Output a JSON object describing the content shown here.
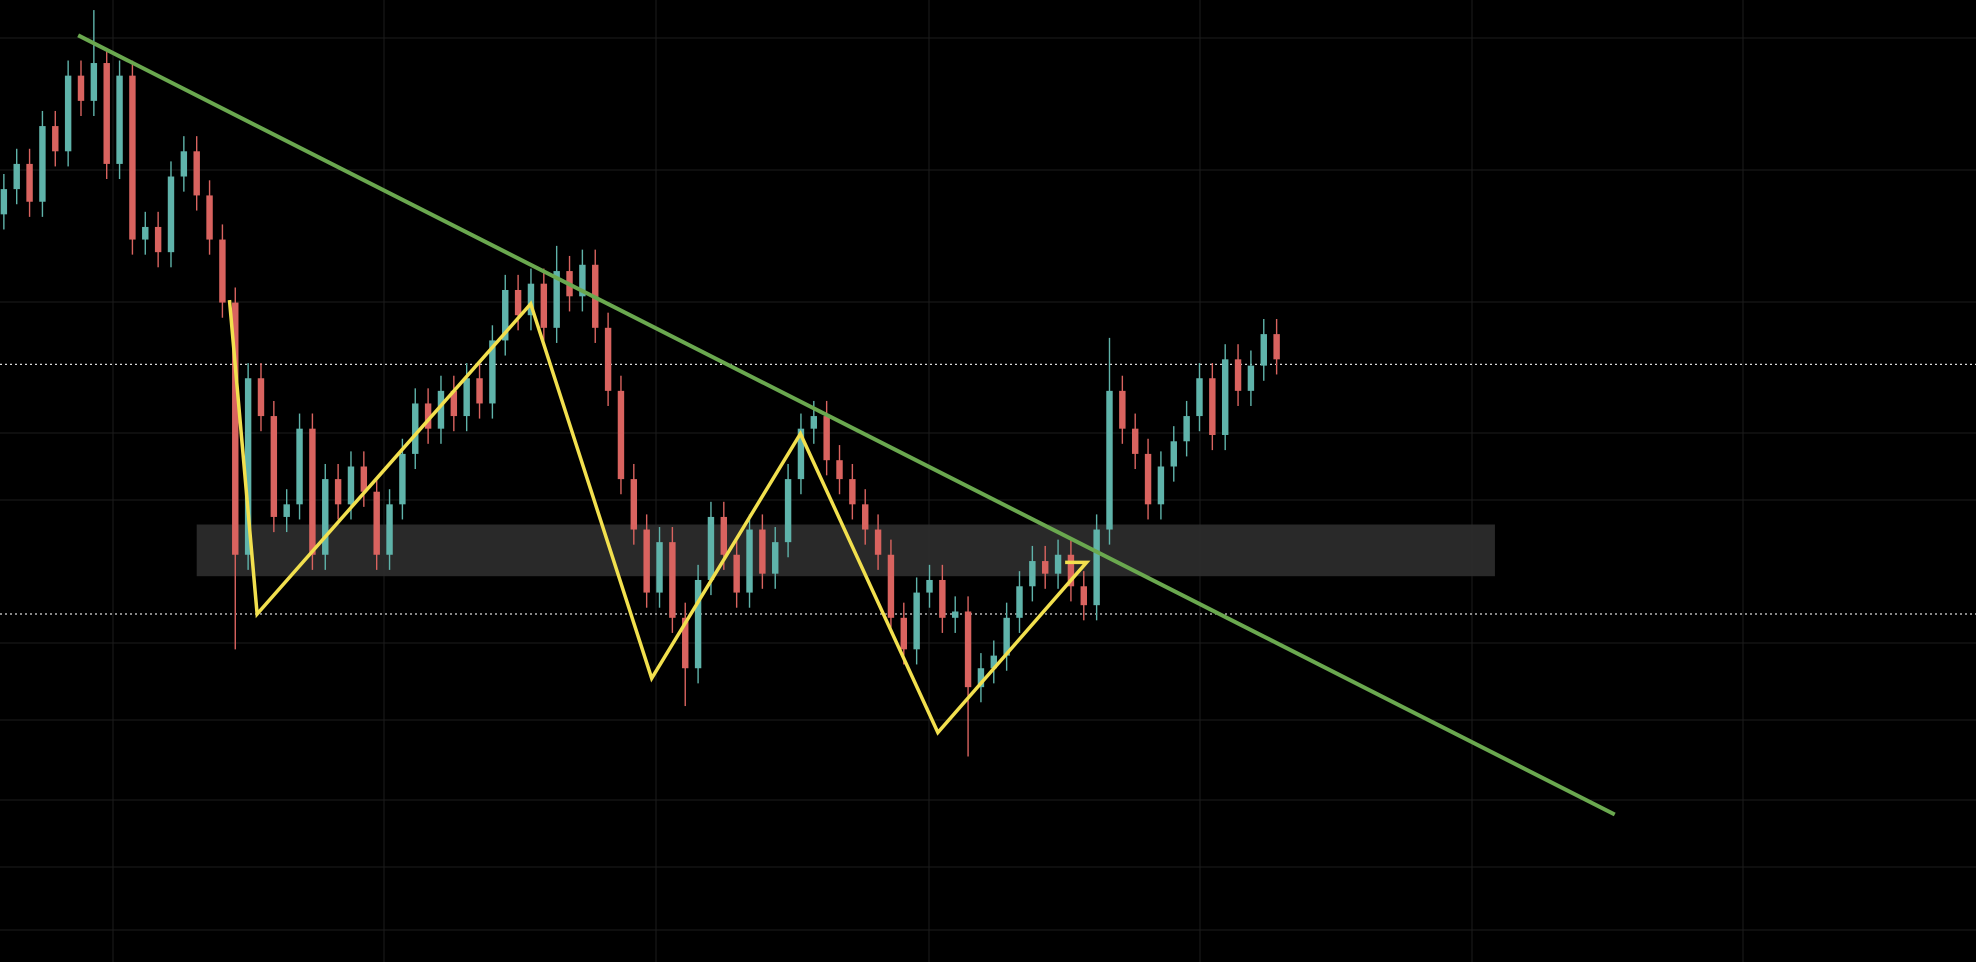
{
  "chart_data": {
    "type": "candlestick",
    "xlim": [
      -0.3,
      153.4
    ],
    "ylim": [
      0,
      763
    ],
    "up_color": "#5fb3aa",
    "down_color": "#d9635f",
    "open": [
      593,
      613,
      633,
      603,
      663,
      643,
      703,
      683,
      713,
      633,
      703,
      573,
      583,
      563,
      623,
      643,
      608,
      573,
      523,
      323,
      463,
      433,
      353,
      363,
      423,
      323,
      383,
      363,
      393,
      373,
      323,
      363,
      403,
      443,
      423,
      453,
      433,
      463,
      443,
      493,
      533,
      513,
      538,
      503,
      548,
      528,
      553,
      503,
      453,
      383,
      343,
      293,
      333,
      273,
      233,
      303,
      353,
      323,
      293,
      343,
      308,
      333,
      383,
      423,
      433,
      398,
      383,
      363,
      343,
      323,
      273,
      248,
      293,
      303,
      273,
      278,
      218,
      233,
      243,
      273,
      298,
      318,
      308,
      323,
      298,
      283,
      343,
      453,
      423,
      403,
      363,
      393,
      413,
      433,
      463,
      418,
      478,
      453,
      473,
      498
    ],
    "high": [
      625,
      645,
      645,
      675,
      675,
      715,
      715,
      755,
      725,
      715,
      715,
      595,
      595,
      635,
      655,
      655,
      620,
      585,
      535,
      475,
      475,
      445,
      375,
      435,
      435,
      395,
      395,
      405,
      405,
      385,
      375,
      415,
      455,
      455,
      465,
      465,
      475,
      475,
      505,
      545,
      545,
      550,
      550,
      568,
      560,
      565,
      565,
      515,
      465,
      395,
      355,
      345,
      345,
      285,
      315,
      365,
      365,
      335,
      355,
      355,
      345,
      395,
      435,
      445,
      445,
      410,
      395,
      375,
      355,
      335,
      285,
      305,
      315,
      315,
      290,
      290,
      245,
      255,
      285,
      310,
      330,
      330,
      335,
      335,
      310,
      355,
      495,
      465,
      435,
      415,
      405,
      425,
      445,
      475,
      475,
      490,
      490,
      485,
      510,
      510
    ],
    "low": [
      581,
      601,
      591,
      591,
      631,
      631,
      671,
      671,
      621,
      621,
      561,
      561,
      551,
      551,
      611,
      596,
      561,
      511,
      248,
      311,
      421,
      341,
      341,
      351,
      311,
      311,
      351,
      351,
      361,
      311,
      311,
      351,
      391,
      411,
      411,
      421,
      421,
      431,
      431,
      481,
      501,
      501,
      491,
      491,
      516,
      516,
      491,
      441,
      371,
      331,
      281,
      281,
      261,
      203,
      221,
      291,
      311,
      281,
      281,
      296,
      296,
      321,
      371,
      411,
      386,
      371,
      351,
      331,
      311,
      261,
      236,
      236,
      281,
      261,
      261,
      163,
      206,
      221,
      231,
      261,
      286,
      296,
      296,
      286,
      271,
      271,
      331,
      411,
      391,
      351,
      351,
      381,
      401,
      421,
      406,
      406,
      441,
      441,
      461,
      466
    ],
    "close": [
      613,
      633,
      603,
      663,
      643,
      703,
      683,
      713,
      633,
      703,
      573,
      583,
      563,
      623,
      643,
      608,
      573,
      523,
      323,
      463,
      433,
      353,
      363,
      423,
      323,
      383,
      363,
      393,
      373,
      323,
      363,
      403,
      443,
      423,
      453,
      433,
      463,
      443,
      493,
      533,
      513,
      538,
      503,
      548,
      528,
      553,
      503,
      453,
      383,
      343,
      293,
      333,
      273,
      233,
      303,
      353,
      323,
      293,
      343,
      308,
      333,
      383,
      423,
      433,
      398,
      383,
      363,
      343,
      323,
      273,
      248,
      293,
      303,
      273,
      278,
      218,
      233,
      243,
      273,
      298,
      318,
      308,
      323,
      298,
      283,
      343,
      453,
      423,
      403,
      363,
      393,
      413,
      433,
      463,
      418,
      478,
      453,
      473,
      498,
      478
    ],
    "zone": {
      "color": "#2b2b2b",
      "x": [
        15.0,
        115.98
      ],
      "y": [
        306,
        347
      ]
    },
    "levels": {
      "color": "#d8d8d8",
      "values": [
        474,
        276
      ]
    },
    "trendline": {
      "color": "#6aa84f",
      "x": [
        5.78,
        125.3
      ],
      "y": [
        735,
        117
      ]
    },
    "zigzag": {
      "color": "#f2e04e",
      "x": [
        17.55,
        19.7,
        40.98,
        50.39,
        61.96,
        72.65,
        84.22,
        82.55
      ],
      "y": [
        525,
        276,
        522,
        225,
        419,
        182,
        317,
        317
      ]
    }
  }
}
